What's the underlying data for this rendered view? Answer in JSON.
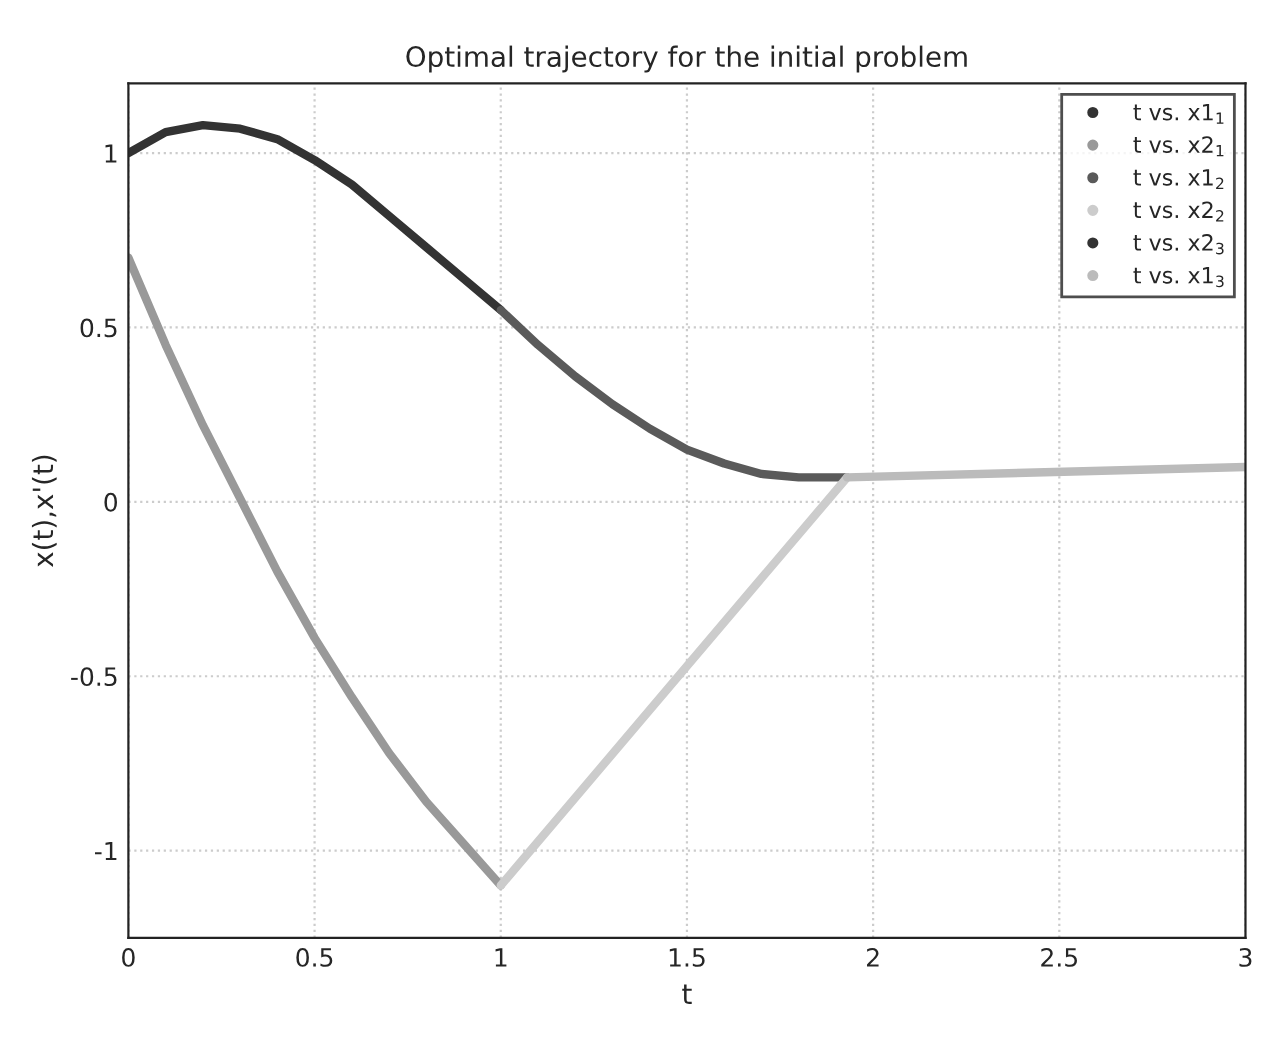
{
  "chart_data": {
    "type": "line",
    "title": "Optimal trajectory for the initial problem",
    "xlabel": "t",
    "ylabel": "x(t),x'(t)",
    "xlim": [
      0,
      3
    ],
    "ylim": [
      -1.25,
      1.2
    ],
    "xticks": [
      0,
      0.5,
      1,
      1.5,
      2,
      2.5,
      3
    ],
    "yticks": [
      -1,
      -0.5,
      0,
      0.5,
      1
    ],
    "grid": true,
    "legend": "top right",
    "line_style": "solid",
    "marker": "none",
    "series": [
      {
        "name": "t vs. x1$_{1}$",
        "color": "#333333",
        "x": [
          0,
          0.1,
          0.2,
          0.3,
          0.4,
          0.5,
          0.6,
          0.7,
          0.8,
          0.9,
          1.0
        ],
        "values": [
          1,
          1.06,
          1.08,
          1.07,
          1.04,
          0.98,
          0.91,
          0.82,
          0.73,
          0.64,
          0.55
        ]
      },
      {
        "name": "t vs. x2$_{1}$",
        "color": "#999999",
        "x": [
          0,
          0.1,
          0.2,
          0.3,
          0.4,
          0.5,
          0.6,
          0.7,
          0.8,
          0.9,
          1.0
        ],
        "values": [
          0.7,
          0.45,
          0.22,
          0.01,
          -0.2,
          -0.39,
          -0.56,
          -0.72,
          -0.86,
          -0.98,
          -1.1
        ]
      },
      {
        "name": "t vs. x1$_{2}$",
        "color": "#5a5a5a",
        "x": [
          1.0,
          1.1,
          1.2,
          1.3,
          1.4,
          1.5,
          1.6,
          1.7,
          1.8,
          1.93
        ],
        "values": [
          0.55,
          0.45,
          0.36,
          0.28,
          0.21,
          0.15,
          0.11,
          0.08,
          0.07,
          0.07
        ]
      },
      {
        "name": "t vs. x2$_{2}$",
        "color": "#cccccc",
        "x": [
          1.0,
          1.93
        ],
        "values": [
          -1.1,
          0.07
        ]
      },
      {
        "name": "t vs. x2$_{3}$",
        "color": "#333333"
      },
      {
        "name": "t vs. x1$_{3}$",
        "color": "#bbbbbb",
        "x": [
          1.93,
          3
        ],
        "values": [
          0.07,
          0.1
        ]
      }
    ]
  }
}
